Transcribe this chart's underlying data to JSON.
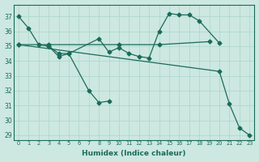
{
  "xlabel": "Humidex (Indice chaleur)",
  "bg_color": "#cce8e0",
  "line_color": "#1a6b5a",
  "grid_color": "#b0d8ce",
  "xlim": [
    -0.5,
    23.5
  ],
  "ylim": [
    28.7,
    37.8
  ],
  "yticks": [
    29,
    30,
    31,
    32,
    33,
    34,
    35,
    36,
    37
  ],
  "xticks": [
    0,
    1,
    2,
    3,
    4,
    5,
    6,
    7,
    8,
    9,
    10,
    11,
    12,
    13,
    14,
    15,
    16,
    17,
    18,
    19,
    20,
    21,
    22,
    23
  ],
  "lines": [
    {
      "x": [
        0,
        1,
        2,
        3,
        4,
        5,
        7,
        8,
        9
      ],
      "y": [
        37.0,
        36.2,
        35.1,
        35.0,
        34.3,
        34.5,
        32.0,
        31.2,
        31.3
      ]
    },
    {
      "x": [
        3,
        4,
        5,
        8,
        9,
        10,
        11,
        12,
        13,
        14,
        15,
        16,
        17,
        18,
        20
      ],
      "y": [
        35.0,
        34.5,
        34.5,
        35.5,
        34.6,
        34.9,
        34.5,
        34.3,
        34.2,
        36.0,
        37.2,
        37.1,
        37.1,
        36.7,
        35.2
      ]
    },
    {
      "x": [
        0,
        3,
        10,
        14,
        19
      ],
      "y": [
        35.1,
        35.1,
        35.1,
        35.1,
        35.3
      ]
    },
    {
      "x": [
        0,
        20,
        21,
        22,
        23
      ],
      "y": [
        35.1,
        33.3,
        31.1,
        29.5,
        29.0
      ]
    }
  ]
}
